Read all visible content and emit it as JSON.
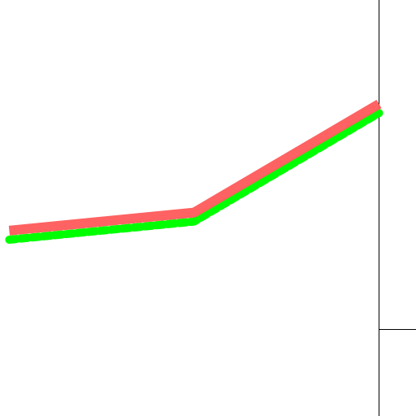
{
  "chart_data": {
    "type": "line",
    "x": [
      0,
      1,
      2
    ],
    "series": [
      {
        "color": "#ff5a5a",
        "style": "solid",
        "values": [
          0.2,
          0.4,
          1.6
        ]
      },
      {
        "color": "#00ff00",
        "style": "dotted",
        "values": [
          0.1,
          0.3,
          1.5
        ]
      }
    ],
    "xlim": [
      -0.05,
      2.2
    ],
    "ylim": [
      -1.85,
      2.75
    ],
    "grid": false,
    "legend": "none"
  }
}
